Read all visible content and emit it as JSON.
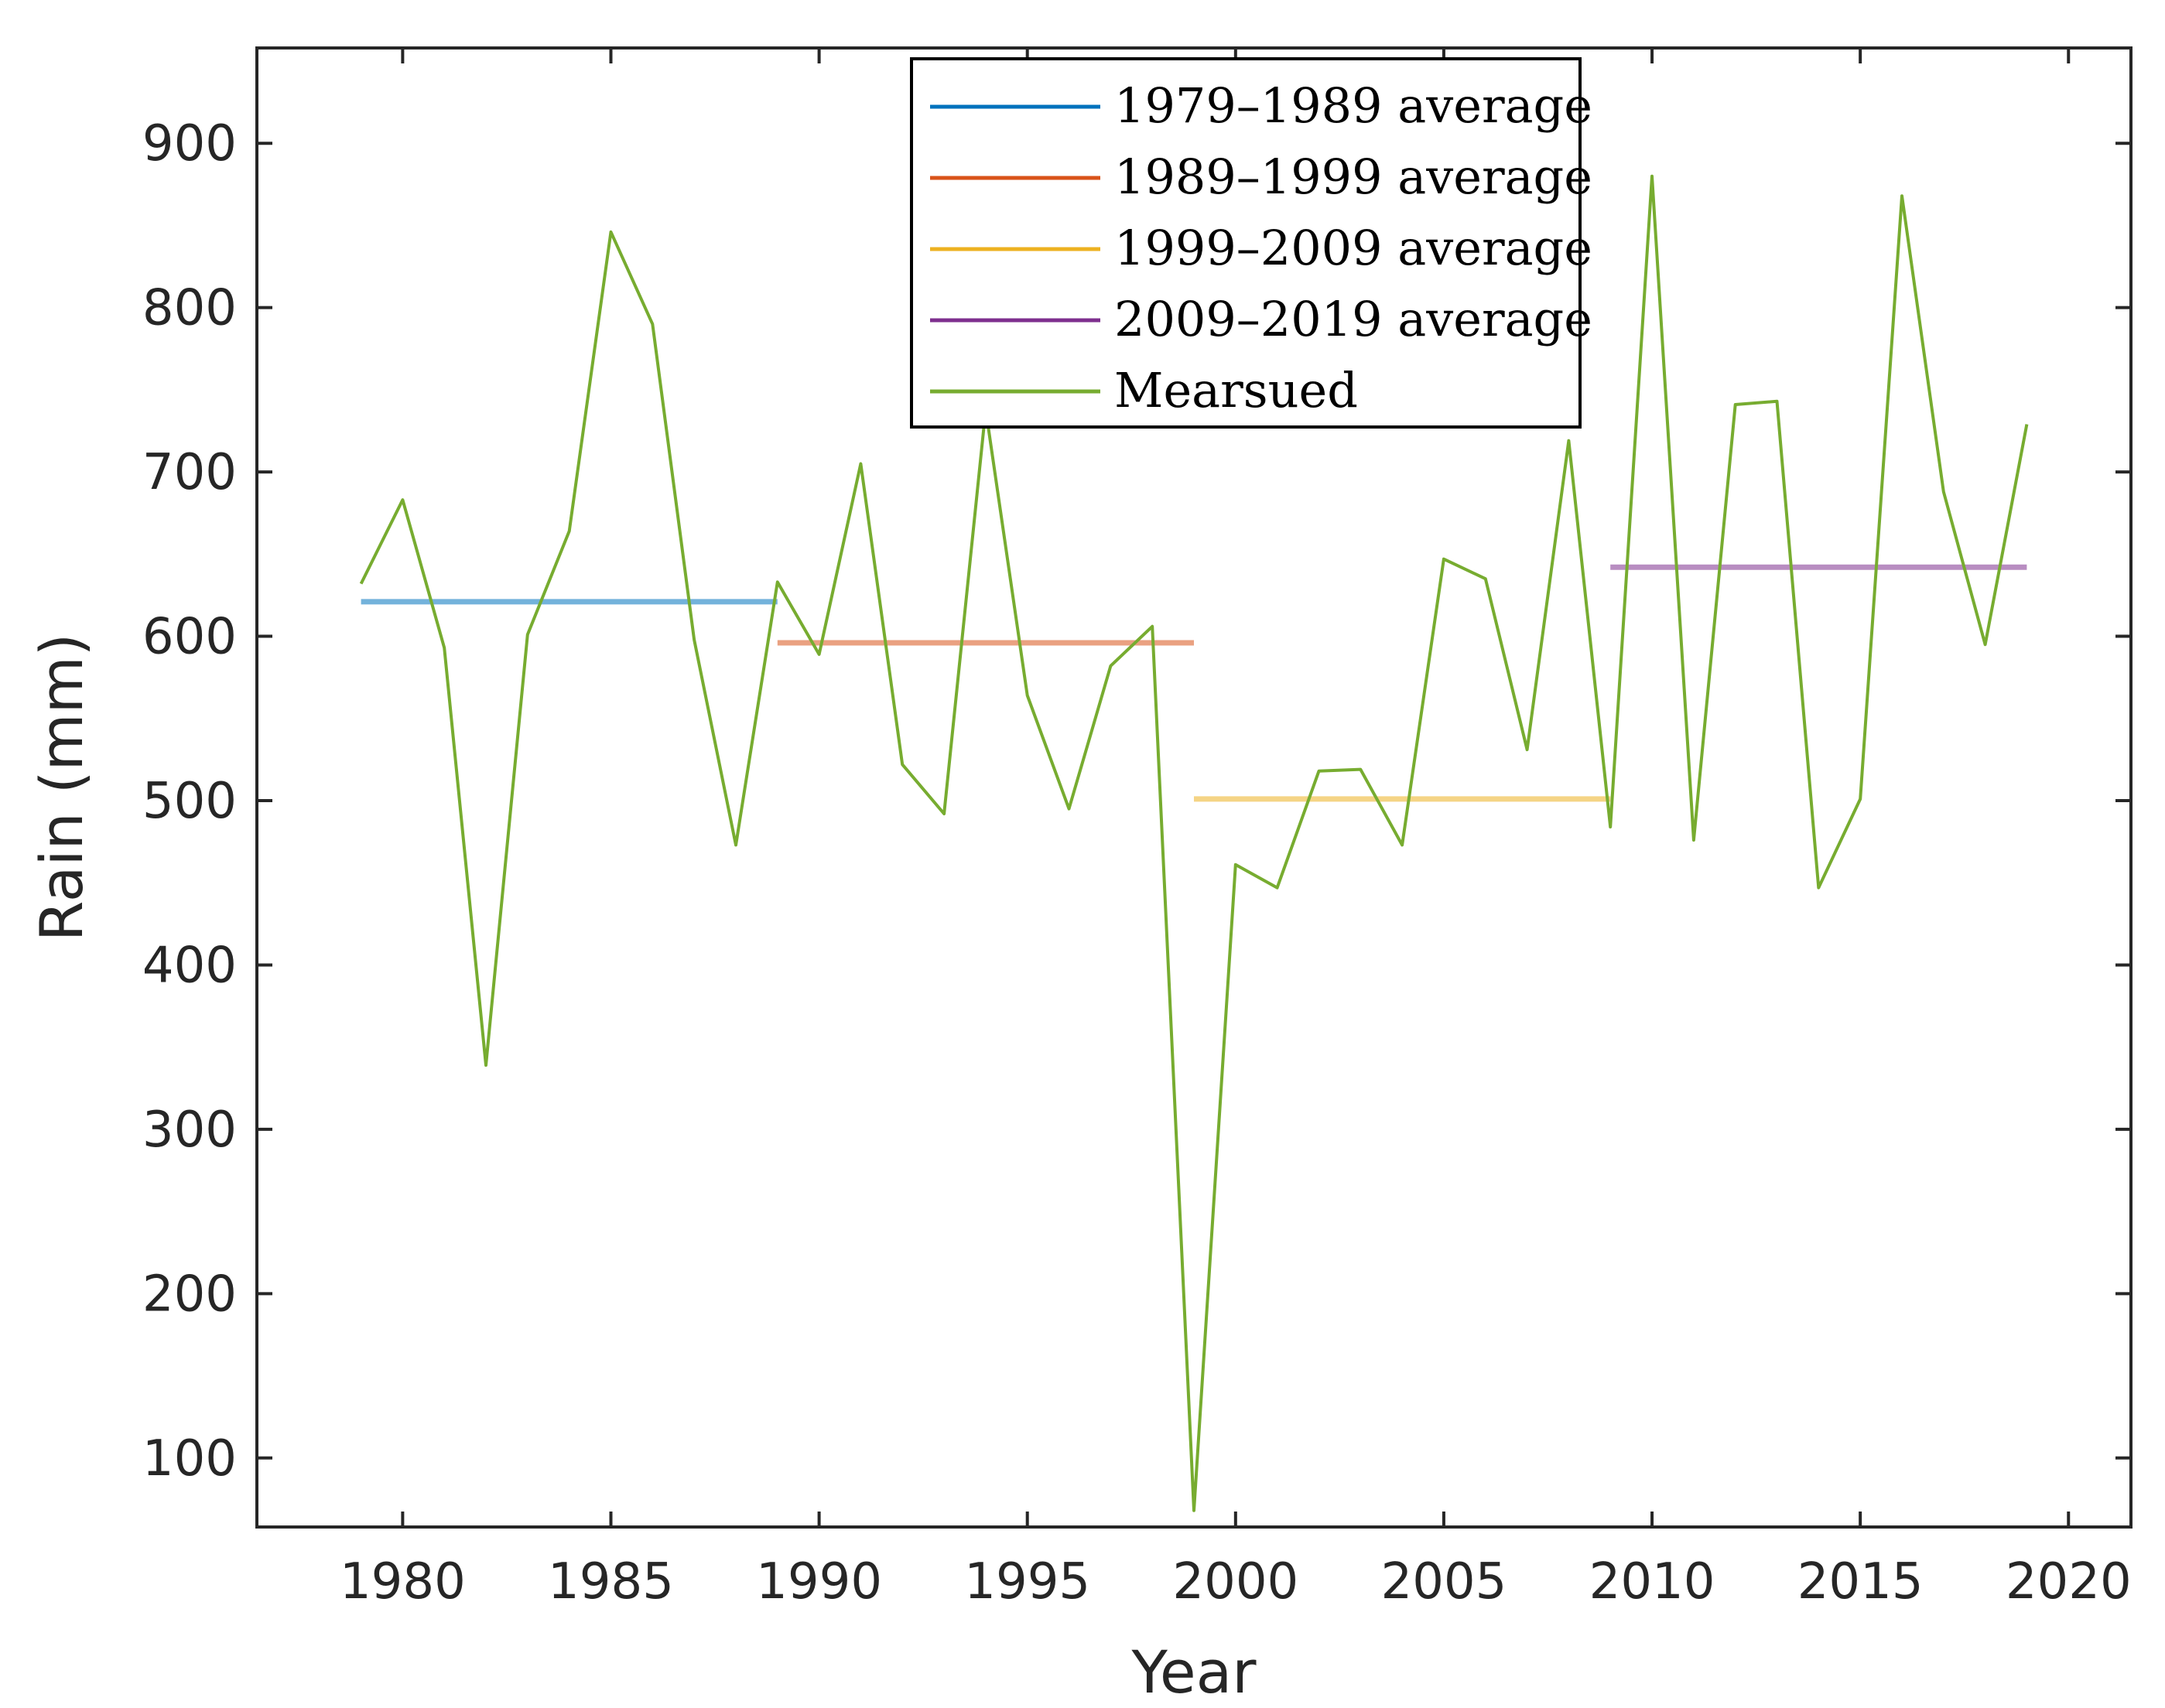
{
  "chart_data": {
    "type": "line",
    "title": "",
    "xlabel": "Year",
    "ylabel": "Rain (mm)",
    "xlim": [
      1976.5,
      2021.5
    ],
    "ylim": [
      58,
      958
    ],
    "xticks": [
      1980,
      1985,
      1990,
      1995,
      2000,
      2005,
      2010,
      2015,
      2020
    ],
    "yticks": [
      100,
      200,
      300,
      400,
      500,
      600,
      700,
      800,
      900
    ],
    "grid": false,
    "legend_position": "top-center",
    "series": [
      {
        "name": "1979–1989 average",
        "color": "#0072BD",
        "x": [
          1979,
          1989
        ],
        "y": [
          621,
          621
        ]
      },
      {
        "name": "1989–1999 average",
        "color": "#D95319",
        "x": [
          1989,
          1999
        ],
        "y": [
          596,
          596
        ]
      },
      {
        "name": "1999–2009 average",
        "color": "#EDB120",
        "x": [
          1999,
          2009
        ],
        "y": [
          501,
          501
        ]
      },
      {
        "name": "2009–2019 average",
        "color": "#7E2F8E",
        "x": [
          2009,
          2019
        ],
        "y": [
          642,
          642
        ]
      },
      {
        "name": "Mearsued",
        "color": "#77AC30",
        "x": [
          1979,
          1980,
          1981,
          1982,
          1983,
          1984,
          1985,
          1986,
          1987,
          1988,
          1989,
          1990,
          1991,
          1992,
          1993,
          1994,
          1995,
          1996,
          1997,
          1998,
          1999,
          2000,
          2001,
          2002,
          2003,
          2004,
          2005,
          2006,
          2007,
          2008,
          2009,
          2010,
          2011,
          2012,
          2013,
          2014,
          2015,
          2016,
          2017,
          2018,
          2019
        ],
        "y": [
          632,
          683,
          593,
          339,
          601,
          664,
          846,
          790,
          598,
          473,
          633,
          589,
          705,
          522,
          492,
          738,
          564,
          495,
          582,
          606,
          68,
          461,
          447,
          518,
          519,
          473,
          647,
          635,
          531,
          719,
          484,
          880,
          476,
          741,
          743,
          447,
          501,
          868,
          688,
          595,
          729
        ]
      }
    ]
  }
}
